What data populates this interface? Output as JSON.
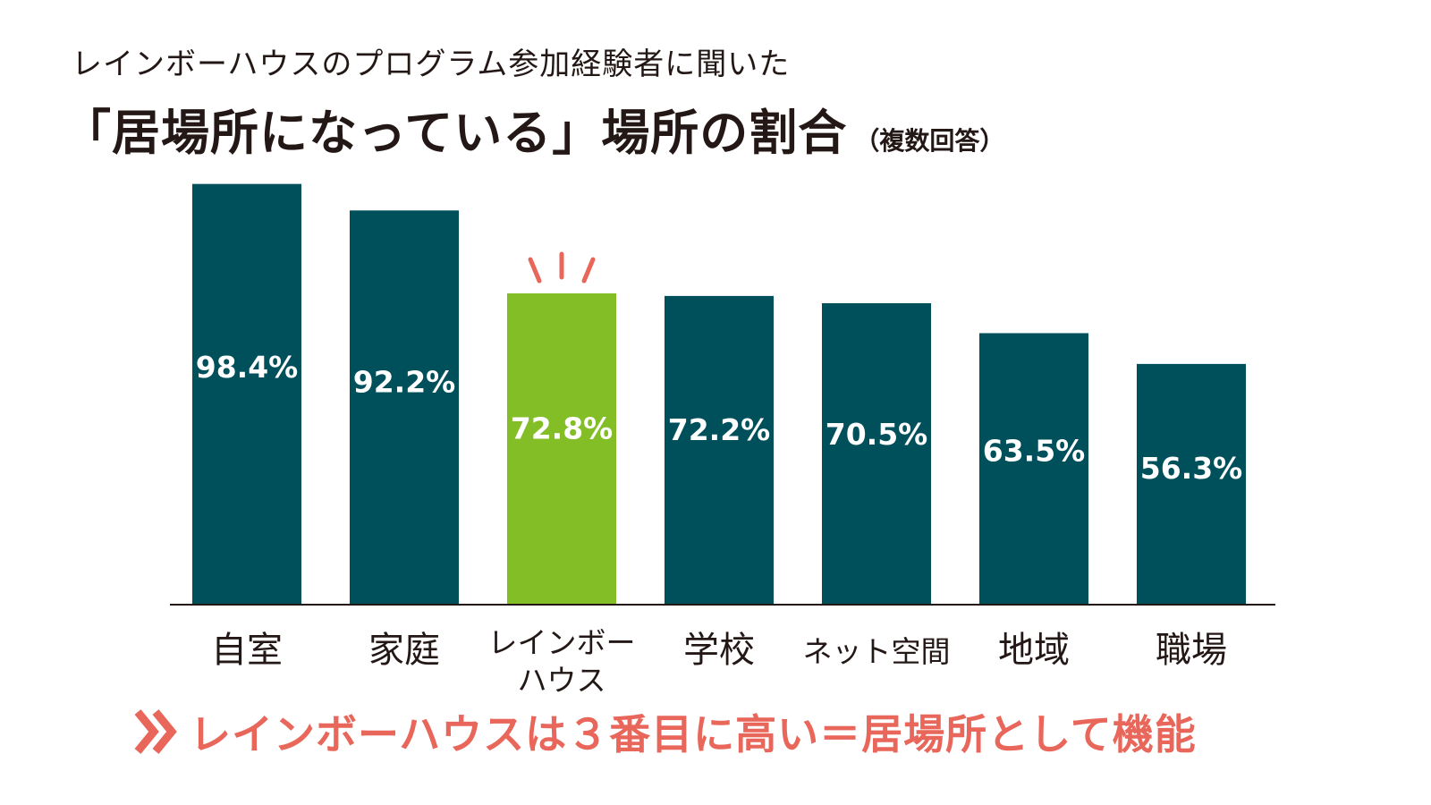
{
  "header": {
    "subtitle": "レインボーハウスのプログラム参加経験者に聞いた",
    "title": "「居場所になっている」場所の割合",
    "title_note": "（複数回答）"
  },
  "colors": {
    "bar_default": "#00505C",
    "bar_highlight": "#84BE27",
    "accent": "#E8665A",
    "text": "#231815"
  },
  "chart_data": {
    "type": "bar",
    "title": "「居場所になっている」場所の割合",
    "categories": [
      "自室",
      "家庭",
      "レインボーハウス",
      "学校",
      "ネット空間",
      "地域",
      "職場"
    ],
    "category_display": [
      [
        "自室"
      ],
      [
        "家庭"
      ],
      [
        "レインボー",
        "ハウス"
      ],
      [
        "学校"
      ],
      [
        "ネット空間"
      ],
      [
        "地域"
      ],
      [
        "職場"
      ]
    ],
    "values": [
      98.4,
      92.2,
      72.8,
      72.2,
      70.5,
      63.5,
      56.3
    ],
    "value_labels": [
      "98.4%",
      "92.2%",
      "72.8%",
      "72.2%",
      "70.5%",
      "63.5%",
      "56.3%"
    ],
    "highlight": "レインボーハウス",
    "unit": "%",
    "ylim": [
      0,
      100
    ],
    "xlabel": "",
    "ylabel": "",
    "grid": false
  },
  "conclusion": {
    "icon": "double-chevron-right-icon",
    "text": "レインボーハウスは３番目に高い＝居場所として機能"
  }
}
